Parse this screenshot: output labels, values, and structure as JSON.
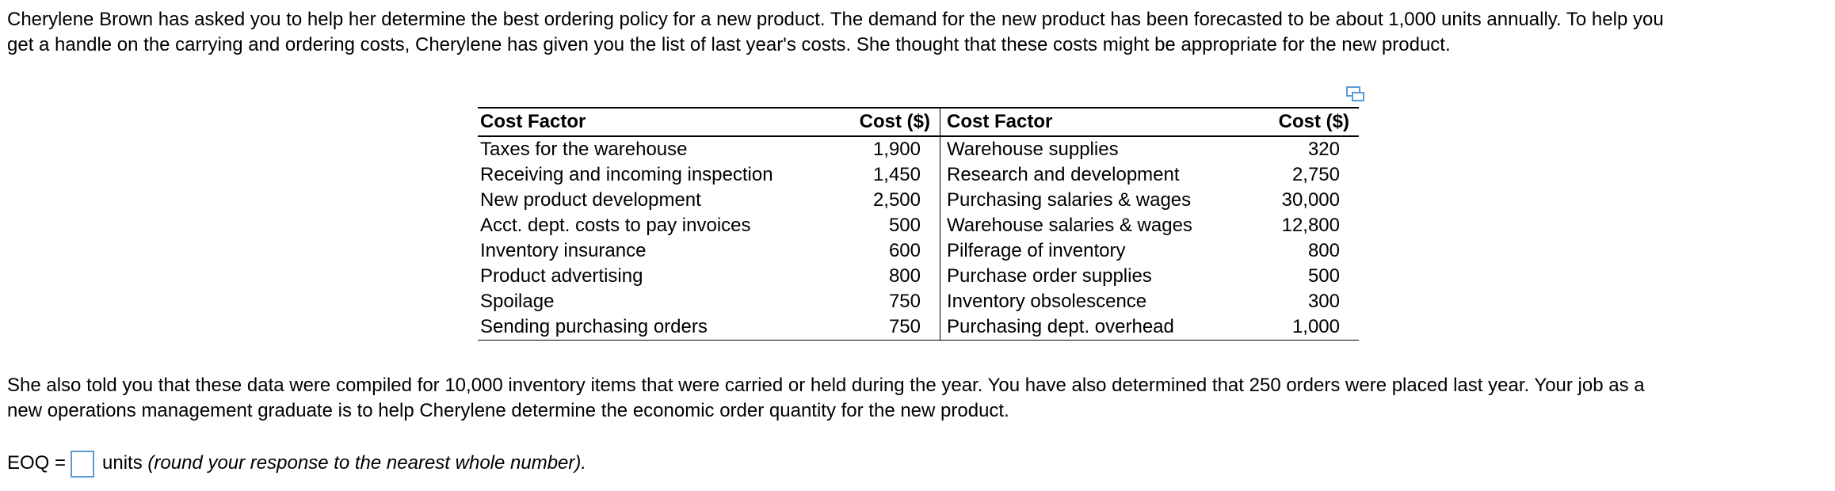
{
  "intro": [
    "Cherylene Brown has asked you to help her determine the best ordering policy for a new product. The demand for the new product has been forecasted to be about 1,000 units annually. To help you",
    "get a handle on the carrying and ordering costs, Cherylene has given you the list of last year's costs. She thought that these costs might be appropriate for the new product."
  ],
  "table": {
    "headers": [
      "Cost Factor",
      "Cost ($)",
      "Cost Factor",
      "Cost ($)"
    ],
    "rows": [
      [
        "Taxes for the warehouse",
        "1,900",
        "Warehouse supplies",
        "320"
      ],
      [
        "Receiving and incoming inspection",
        "1,450",
        "Research and development",
        "2,750"
      ],
      [
        "New product development",
        "2,500",
        "Purchasing salaries & wages",
        "30,000"
      ],
      [
        "Acct. dept. costs to pay invoices",
        "500",
        "Warehouse salaries & wages",
        "12,800"
      ],
      [
        "Inventory insurance",
        "600",
        "Pilferage of inventory",
        "800"
      ],
      [
        "Product advertising",
        "800",
        "Purchase order supplies",
        "500"
      ],
      [
        "Spoilage",
        "750",
        "Inventory obsolescence",
        "300"
      ],
      [
        "Sending purchasing orders",
        "750",
        "Purchasing dept. overhead",
        "1,000"
      ]
    ]
  },
  "outro": [
    "She also told you that these data were compiled for 10,000 inventory items that were carried or held during the year. You have also determined that 250 orders were placed last year. Your job as a",
    "new operations management graduate is to help  Cherylene determine the economic order quantity for the new product."
  ],
  "answer": {
    "label": "EOQ =",
    "units": "units",
    "instruction": "(round your response to the nearest whole number)."
  }
}
